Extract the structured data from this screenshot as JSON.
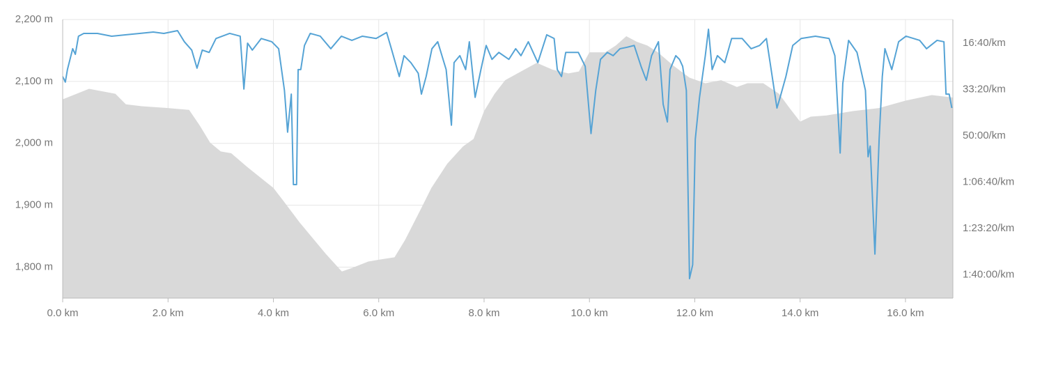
{
  "chart_data": {
    "type": "area-line",
    "xlim": [
      0,
      16.9
    ],
    "xticks": [
      {
        "value": 0,
        "label": "0.0 km"
      },
      {
        "value": 2,
        "label": "2.0 km"
      },
      {
        "value": 4,
        "label": "4.0 km"
      },
      {
        "value": 6,
        "label": "6.0 km"
      },
      {
        "value": 8,
        "label": "8.0 km"
      },
      {
        "value": 10,
        "label": "10.0 km"
      },
      {
        "value": 12,
        "label": "12.0 km"
      },
      {
        "value": 14,
        "label": "14.0 km"
      },
      {
        "value": 16,
        "label": "16.0 km"
      }
    ],
    "ylim": [
      1750,
      2200
    ],
    "yticks": [
      {
        "value": 1800,
        "label": "1,800 m"
      },
      {
        "value": 1900,
        "label": "1,900 m"
      },
      {
        "value": 2000,
        "label": "2,000 m"
      },
      {
        "value": 2100,
        "label": "2,100 m"
      },
      {
        "value": 2200,
        "label": "2,200 m"
      }
    ],
    "y2lim": [
      6500,
      490
    ],
    "y2ticks": [
      {
        "value": 1000,
        "label": "16:40/km"
      },
      {
        "value": 2000,
        "label": "33:20/km"
      },
      {
        "value": 3000,
        "label": "50:00/km"
      },
      {
        "value": 4000,
        "label": "1:06:40/km"
      },
      {
        "value": 5000,
        "label": "1:23:20/km"
      },
      {
        "value": 6000,
        "label": "1:40:00/km"
      }
    ],
    "grid": true,
    "series": [
      {
        "kind": "area",
        "color": "#d9d9d9",
        "x": [
          0,
          0.5,
          1.0,
          1.2,
          1.5,
          2.0,
          2.4,
          2.6,
          2.8,
          3.0,
          3.2,
          3.5,
          4.0,
          4.2,
          4.5,
          5.0,
          5.3,
          5.5,
          5.8,
          6.0,
          6.3,
          6.5,
          6.8,
          7.0,
          7.3,
          7.6,
          7.8,
          8.0,
          8.2,
          8.4,
          8.7,
          9.0,
          9.3,
          9.6,
          9.8,
          10.0,
          10.3,
          10.5,
          10.7,
          10.9,
          11.1,
          11.3,
          11.6,
          11.9,
          12.2,
          12.5,
          12.8,
          13.0,
          13.3,
          13.6,
          13.8,
          14.0,
          14.2,
          14.5,
          15.0,
          15.5,
          16.0,
          16.5,
          16.9
        ],
        "values": [
          2071,
          2088,
          2080,
          2063,
          2060,
          2057,
          2054,
          2029,
          2001,
          1987,
          1984,
          1962,
          1928,
          1906,
          1872,
          1821,
          1793,
          1799,
          1809,
          1812,
          1816,
          1844,
          1894,
          1928,
          1967,
          1995,
          2007,
          2052,
          2080,
          2102,
          2116,
          2130,
          2119,
          2113,
          2116,
          2147,
          2147,
          2158,
          2173,
          2164,
          2158,
          2147,
          2125,
          2106,
          2097,
          2102,
          2091,
          2097,
          2097,
          2080,
          2057,
          2035,
          2043,
          2045,
          2052,
          2057,
          2069,
          2078,
          2074
        ]
      },
      {
        "kind": "line",
        "color": "#55a3d5",
        "axis": "y2",
        "x": [
          0,
          0.05,
          0.09,
          0.19,
          0.24,
          0.3,
          0.4,
          0.66,
          0.93,
          1.19,
          1.46,
          1.72,
          1.92,
          2.18,
          2.31,
          2.45,
          2.55,
          2.65,
          2.78,
          2.91,
          3.17,
          3.37,
          3.44,
          3.51,
          3.6,
          3.77,
          3.97,
          4.1,
          4.21,
          4.27,
          4.34,
          4.38,
          4.44,
          4.47,
          4.52,
          4.59,
          4.7,
          4.89,
          5.09,
          5.29,
          5.49,
          5.69,
          5.95,
          6.15,
          6.24,
          6.39,
          6.48,
          6.61,
          6.75,
          6.81,
          6.9,
          7.01,
          7.12,
          7.28,
          7.38,
          7.43,
          7.54,
          7.65,
          7.72,
          7.83,
          7.94,
          8.04,
          8.15,
          8.28,
          8.47,
          8.6,
          8.7,
          8.84,
          9.02,
          9.19,
          9.33,
          9.39,
          9.47,
          9.55,
          9.79,
          9.92,
          10.03,
          10.12,
          10.21,
          10.34,
          10.45,
          10.58,
          10.71,
          10.85,
          10.98,
          11.08,
          11.18,
          11.31,
          11.4,
          11.48,
          11.53,
          11.64,
          11.71,
          11.77,
          11.84,
          11.9,
          11.96,
          12.01,
          12.09,
          12.2,
          12.26,
          12.33,
          12.43,
          12.57,
          12.7,
          12.9,
          13.07,
          13.23,
          13.36,
          13.43,
          13.56,
          13.62,
          13.73,
          13.86,
          14.02,
          14.29,
          14.55,
          14.66,
          14.71,
          14.76,
          14.81,
          14.92,
          15.08,
          15.24,
          15.29,
          15.33,
          15.42,
          15.5,
          15.56,
          15.61,
          15.74,
          15.87,
          16.01,
          16.27,
          16.4,
          16.6,
          16.73,
          16.77,
          16.83,
          16.88
        ],
        "values": [
          1720,
          1840,
          1570,
          1120,
          1240,
          850,
          790,
          790,
          850,
          820,
          790,
          760,
          790,
          730,
          970,
          1150,
          1540,
          1150,
          1200,
          900,
          790,
          850,
          1990,
          1000,
          1150,
          900,
          970,
          1120,
          2020,
          2920,
          2100,
          4050,
          4050,
          1570,
          1570,
          1050,
          790,
          850,
          1120,
          850,
          940,
          850,
          900,
          770,
          1120,
          1720,
          1270,
          1420,
          1650,
          2100,
          1720,
          1120,
          970,
          1570,
          2770,
          1420,
          1270,
          1570,
          970,
          2170,
          1570,
          1050,
          1350,
          1200,
          1350,
          1120,
          1270,
          970,
          1420,
          820,
          900,
          1570,
          1720,
          1200,
          1200,
          1500,
          2950,
          2020,
          1350,
          1200,
          1270,
          1120,
          1090,
          1050,
          1500,
          1800,
          1270,
          970,
          2320,
          2700,
          1570,
          1270,
          1350,
          1500,
          2020,
          6080,
          5780,
          3070,
          2170,
          1270,
          700,
          1570,
          1270,
          1420,
          900,
          900,
          1120,
          1050,
          900,
          1420,
          2400,
          2170,
          1720,
          1050,
          900,
          850,
          900,
          1270,
          2320,
          3370,
          1870,
          940,
          1200,
          2020,
          3450,
          3220,
          5550,
          3070,
          1720,
          1120,
          1570,
          970,
          850,
          940,
          1120,
          940,
          970,
          2100,
          2100,
          2400
        ]
      }
    ]
  }
}
